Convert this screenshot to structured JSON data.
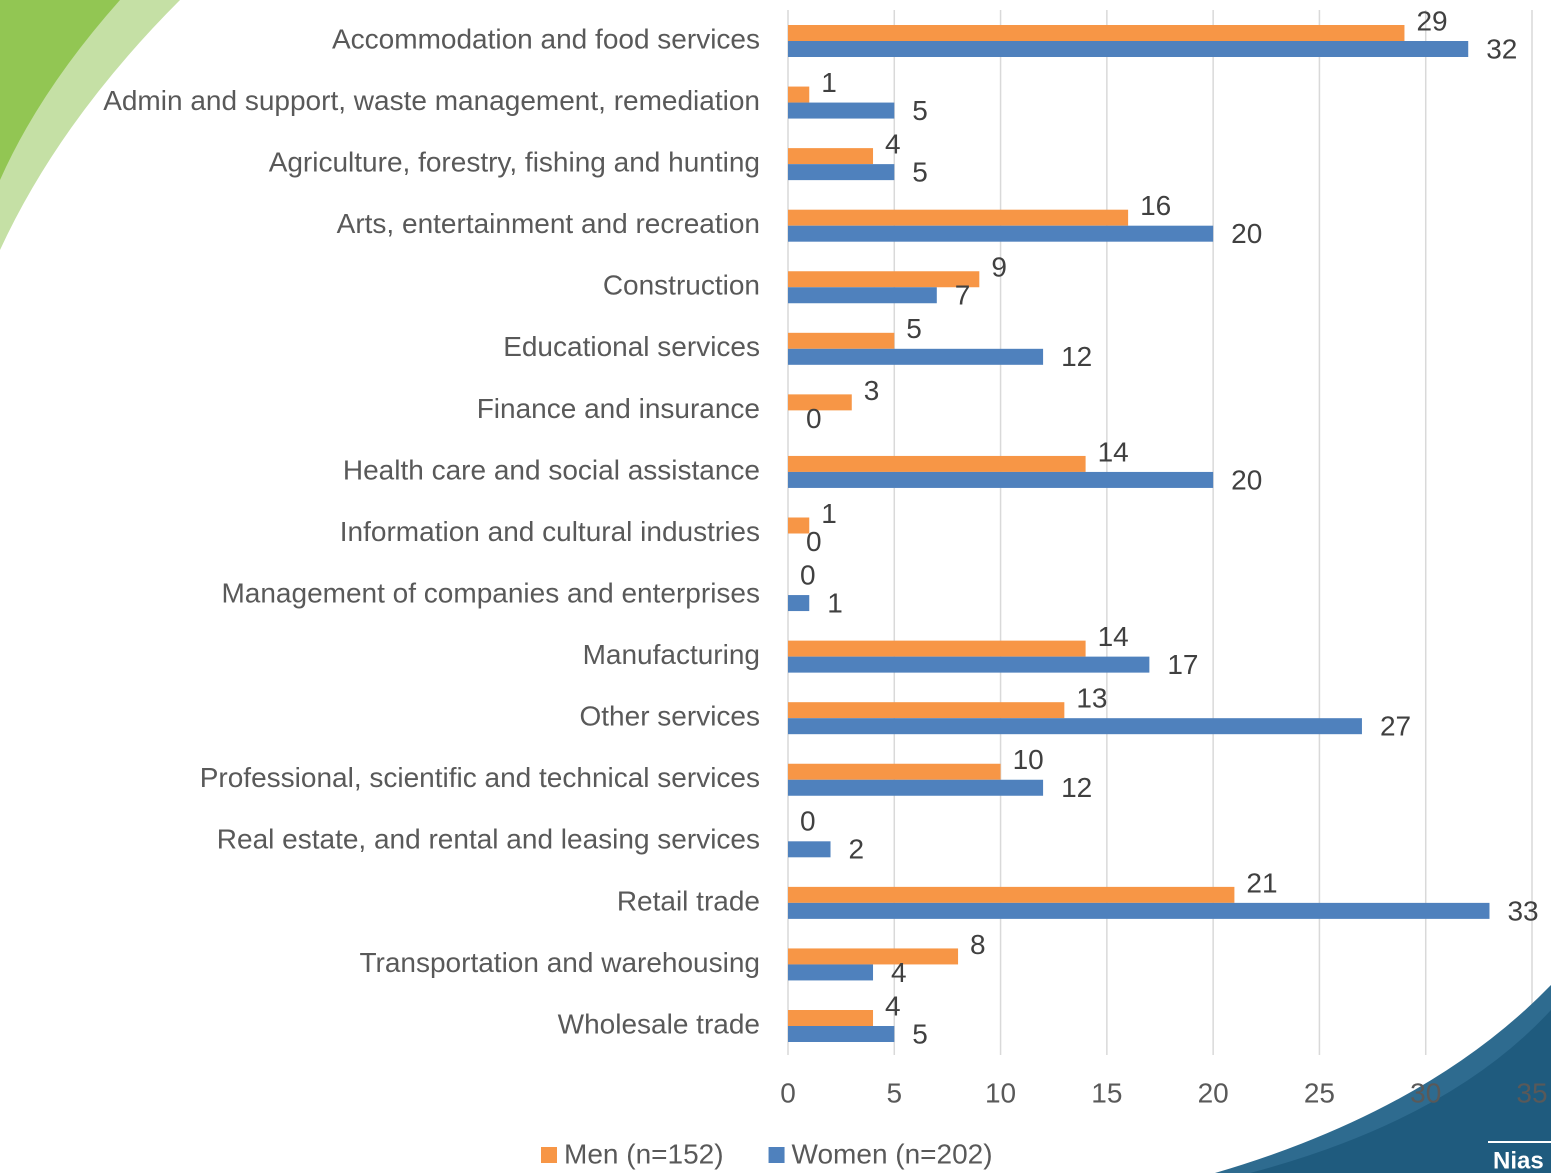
{
  "chart_data": {
    "type": "barh",
    "categories": [
      "Accommodation and food services",
      "Admin and support, waste management, remediation",
      "Agriculture, forestry, fishing and hunting",
      "Arts, entertainment and recreation",
      "Construction",
      "Educational services",
      "Finance and insurance",
      "Health care and social assistance",
      "Information and cultural industries",
      "Management of companies and enterprises",
      "Manufacturing",
      "Other services",
      "Professional, scientific and technical services",
      "Real estate, and rental and leasing services",
      "Retail trade",
      "Transportation and warehousing",
      "Wholesale trade"
    ],
    "series": [
      {
        "name": "Men (n=152)",
        "color": "#f79646",
        "values": [
          29,
          1,
          4,
          16,
          9,
          5,
          3,
          14,
          1,
          0,
          14,
          13,
          10,
          0,
          21,
          8,
          4
        ]
      },
      {
        "name": "Women (n=202)",
        "color": "#4f81bd",
        "values": [
          32,
          5,
          5,
          20,
          7,
          12,
          0,
          20,
          0,
          1,
          17,
          27,
          12,
          2,
          33,
          4,
          5
        ]
      }
    ],
    "xlim": [
      0,
      35
    ],
    "xticks": [
      0,
      5,
      10,
      15,
      20,
      25,
      30,
      35
    ],
    "grid": true,
    "legend": "bottom"
  },
  "logo_text": "Nias"
}
